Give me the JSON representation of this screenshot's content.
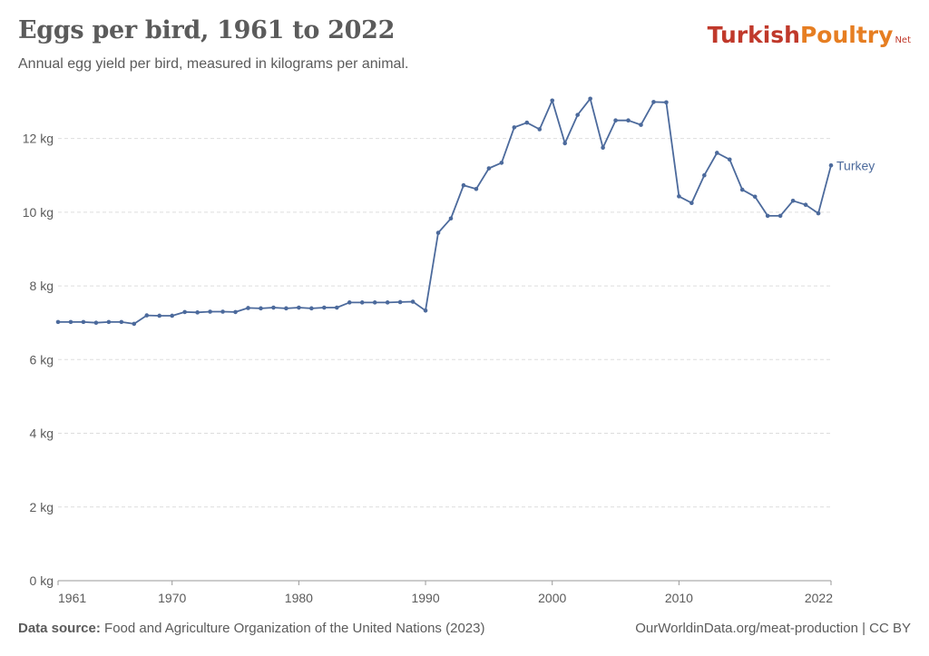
{
  "header": {
    "title": "Eggs per bird, 1961 to 2022",
    "subtitle": "Annual egg yield per bird, measured in kilograms per animal."
  },
  "logo": {
    "text1": "Turkish ",
    "text2": "Poultry",
    "text3": "Net"
  },
  "footer": {
    "source_label": "Data source:",
    "source_text": "Food and Agriculture Organization of the United Nations (2023)",
    "credit": "OurWorldinData.org/meat-production | CC BY"
  },
  "colors": {
    "line": "#4c6a9c",
    "grid": "#dddddd",
    "text": "#5b5b5b"
  },
  "chart_data": {
    "type": "line",
    "title": "Eggs per bird, 1961 to 2022",
    "ylim": [
      0,
      13
    ],
    "yticks": [
      0,
      2,
      4,
      6,
      8,
      10,
      12
    ],
    "ytick_labels": [
      "0 kg",
      "2 kg",
      "4 kg",
      "6 kg",
      "8 kg",
      "10 kg",
      "12 kg"
    ],
    "xlim": [
      1961,
      2022
    ],
    "xticks": [
      1961,
      1970,
      1980,
      1990,
      2000,
      2010,
      2022
    ],
    "xtick_labels": [
      "1961",
      "1970",
      "1980",
      "1990",
      "2000",
      "2010",
      "2022"
    ],
    "grid": true,
    "series": [
      {
        "name": "Turkey",
        "x": [
          1961,
          1962,
          1963,
          1964,
          1965,
          1966,
          1967,
          1968,
          1969,
          1970,
          1971,
          1972,
          1973,
          1974,
          1975,
          1976,
          1977,
          1978,
          1979,
          1980,
          1981,
          1982,
          1983,
          1984,
          1985,
          1986,
          1987,
          1988,
          1989,
          1990,
          1991,
          1992,
          1993,
          1994,
          1995,
          1996,
          1997,
          1998,
          1999,
          2000,
          2001,
          2002,
          2003,
          2004,
          2005,
          2006,
          2007,
          2008,
          2009,
          2010,
          2011,
          2012,
          2013,
          2014,
          2015,
          2016,
          2017,
          2018,
          2019,
          2020,
          2021,
          2022
        ],
        "y": [
          7.02,
          7.02,
          7.02,
          7.0,
          7.02,
          7.02,
          6.97,
          7.2,
          7.19,
          7.19,
          7.29,
          7.28,
          7.3,
          7.3,
          7.29,
          7.4,
          7.39,
          7.41,
          7.39,
          7.41,
          7.39,
          7.41,
          7.41,
          7.55,
          7.55,
          7.55,
          7.55,
          7.56,
          7.57,
          7.33,
          9.44,
          9.83,
          10.73,
          10.63,
          11.19,
          11.34,
          12.3,
          12.43,
          12.25,
          13.03,
          11.87,
          12.64,
          13.08,
          11.75,
          12.49,
          12.49,
          12.37,
          12.99,
          12.98,
          10.43,
          10.25,
          11.0,
          11.61,
          11.43,
          10.61,
          10.42,
          9.9,
          9.9,
          10.31,
          10.2,
          9.97,
          11.27
        ]
      }
    ]
  }
}
